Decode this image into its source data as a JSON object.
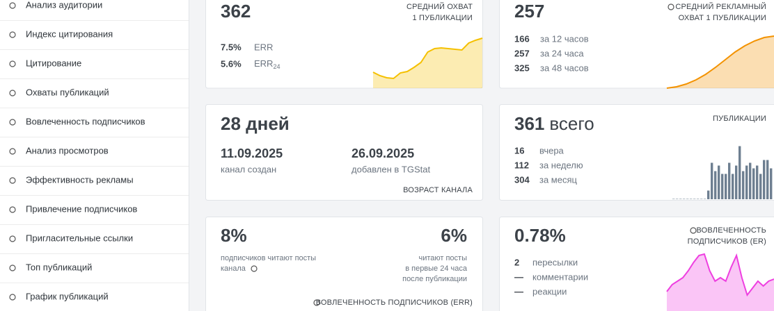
{
  "sidebar": {
    "items": [
      "Анализ аудитории",
      "Индекс цитирования",
      "Цитирование",
      "Охваты публикаций",
      "Вовлеченность подписчиков",
      "Анализ просмотров",
      "Эффективность рекламы",
      "Привлечение подписчиков",
      "Пригласительные ссылки",
      "Топ публикаций",
      "График публикаций"
    ]
  },
  "cards": {
    "avg_reach": {
      "value": 362,
      "title_lines": [
        "СРЕДНИЙ ОХВАТ",
        "1 ПУБЛИКАЦИИ"
      ],
      "rows": [
        {
          "value": "7.5%",
          "label": "ERR"
        },
        {
          "value": "5.6%",
          "label": "ERR",
          "sub": "24"
        }
      ],
      "color": "#f5c000",
      "sparkline": [
        23,
        18,
        15,
        14,
        22,
        24,
        30,
        37,
        52,
        57,
        58,
        57,
        56,
        55,
        65,
        69,
        72
      ]
    },
    "ad_reach": {
      "value": 257,
      "title_lines": [
        "СРЕДНИЙ РЕКЛАМНЫЙ",
        "ОХВАТ 1 ПУБЛИКАЦИИ"
      ],
      "rows": [
        {
          "value": 166,
          "label": "за 12 часов"
        },
        {
          "value": 257,
          "label": "за 24 часа"
        },
        {
          "value": 325,
          "label": "за 48 часов"
        }
      ],
      "color": "#f39200",
      "sparkline": [
        0,
        2,
        6,
        12,
        20,
        30,
        41,
        52,
        61,
        68,
        73,
        75
      ]
    },
    "age": {
      "value": "28 дней",
      "title": "ВОЗРАСТ КАНАЛА",
      "created": {
        "date": "11.09.2025",
        "label": "канал создан"
      },
      "added": {
        "date": "26.09.2025",
        "label": "добавлен в TGStat"
      }
    },
    "posts": {
      "value": 361,
      "value_suffix": "всего",
      "title": "ПУБЛИКАЦИИ",
      "rows": [
        {
          "value": 16,
          "label": "вчера"
        },
        {
          "value": 112,
          "label": "за неделю"
        },
        {
          "value": 304,
          "label": "за месяц"
        }
      ],
      "color": "#6e7f91",
      "bars": [
        0,
        0,
        0,
        0,
        0,
        0,
        0,
        0,
        0,
        0,
        3,
        13,
        10,
        12,
        9,
        9,
        13,
        9,
        12,
        19,
        10,
        12,
        13,
        11,
        12,
        9,
        14,
        14,
        11
      ]
    },
    "err": {
      "left": {
        "value": "8%",
        "lines": [
          "подписчиков читают посты",
          "канала"
        ]
      },
      "right": {
        "value": "6%",
        "lines": [
          "читают посты",
          "в первые 24 часа",
          "после публикации"
        ]
      },
      "title": "ВОВЛЕЧЕННОСТЬ ПОДПИСЧИКОВ (ERR)"
    },
    "er": {
      "value": "0.78%",
      "title_lines": [
        "ВОВЛЕЧЕННОСТЬ",
        "ПОДПИСЧИКОВ (ER)"
      ],
      "rows": [
        {
          "value": 2,
          "label": "пересылки"
        },
        {
          "value": "—",
          "label": "комментарии"
        },
        {
          "value": "—",
          "label": "реакции"
        }
      ],
      "color": "#ee3fe0",
      "sparkline": [
        28,
        38,
        43,
        48,
        58,
        70,
        80,
        82,
        58,
        43,
        48,
        43,
        63,
        80,
        48,
        23,
        33,
        43,
        36,
        43,
        46
      ]
    }
  }
}
